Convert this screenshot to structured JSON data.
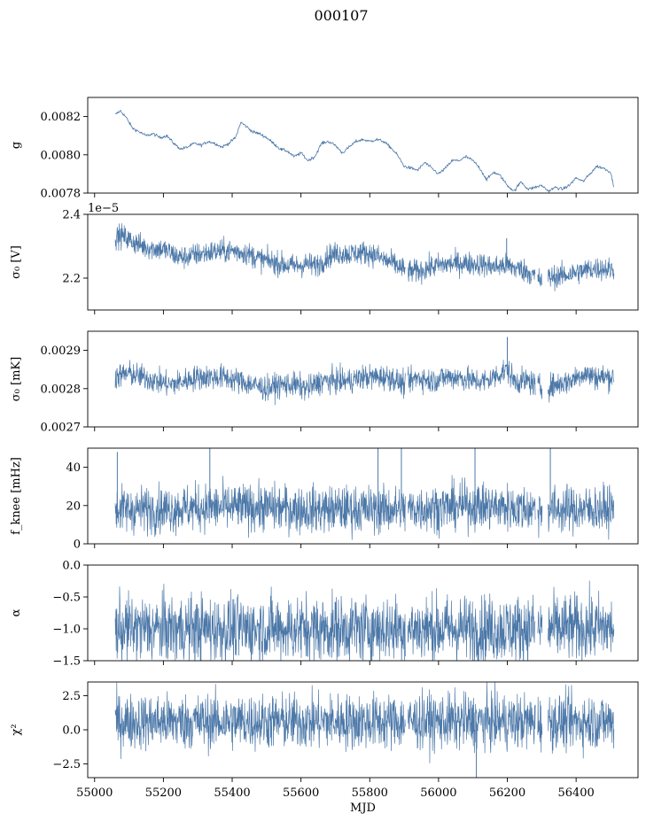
{
  "figure": {
    "suptitle": "000107",
    "line_color": "#4c78a8",
    "xlim": [
      54980,
      56580
    ]
  },
  "chart_data": [
    {
      "type": "line",
      "ylabel": "g",
      "ylim": [
        0.0078,
        0.0083
      ],
      "yticks": [
        0.0078,
        0.008,
        0.0082
      ],
      "yticklabels": [
        "0.0078",
        "0.0080",
        "0.0082"
      ],
      "xticks": [
        55000,
        55200,
        55400,
        55600,
        55800,
        56000,
        56200,
        56400
      ],
      "show_xticklabels": false,
      "style": "thin",
      "x": [
        55060,
        55075,
        55090,
        55110,
        55130,
        55150,
        55170,
        55190,
        55210,
        55230,
        55250,
        55270,
        55290,
        55310,
        55330,
        55350,
        55370,
        55390,
        55410,
        55425,
        55440,
        55460,
        55480,
        55500,
        55520,
        55540,
        55560,
        55580,
        55600,
        55620,
        55640,
        55660,
        55680,
        55700,
        55720,
        55740,
        55760,
        55780,
        55800,
        55820,
        55840,
        55860,
        55880,
        55900,
        55920,
        55940,
        55960,
        55980,
        56000,
        56020,
        56040,
        56060,
        56080,
        56100,
        56120,
        56140,
        56160,
        56180,
        56200,
        56220,
        56240,
        56260,
        56280,
        56300,
        56320,
        56340,
        56360,
        56380,
        56400,
        56420,
        56440,
        56460,
        56480,
        56500,
        56510
      ],
      "y": [
        0.00821,
        0.00823,
        0.0082,
        0.00814,
        0.00812,
        0.0081,
        0.00811,
        0.00809,
        0.0081,
        0.00806,
        0.00803,
        0.00804,
        0.00806,
        0.00805,
        0.00807,
        0.00806,
        0.00804,
        0.00806,
        0.00809,
        0.00817,
        0.00815,
        0.00812,
        0.00811,
        0.00809,
        0.00806,
        0.00803,
        0.00802,
        0.00799,
        0.00801,
        0.00797,
        0.00799,
        0.00806,
        0.00807,
        0.00805,
        0.00801,
        0.00804,
        0.00807,
        0.00808,
        0.00807,
        0.00808,
        0.00807,
        0.00804,
        0.008,
        0.00794,
        0.00793,
        0.00792,
        0.00796,
        0.00793,
        0.0079,
        0.00793,
        0.00797,
        0.00797,
        0.00799,
        0.00797,
        0.00793,
        0.00787,
        0.00791,
        0.00789,
        0.00784,
        0.00781,
        0.00786,
        0.00782,
        0.00783,
        0.00784,
        0.00781,
        0.00783,
        0.00782,
        0.00784,
        0.00788,
        0.00786,
        0.0079,
        0.00794,
        0.00793,
        0.00791,
        0.00783
      ]
    },
    {
      "type": "line",
      "ylabel": "σ₀ [V]",
      "ylim": [
        2.1e-05,
        2.4e-05
      ],
      "yticks": [
        2.2e-05,
        2.4e-05
      ],
      "yticklabels": [
        "2.2",
        "2.4"
      ],
      "offset_text": "1e−5",
      "xticks": [
        55000,
        55200,
        55400,
        55600,
        55800,
        56000,
        56200,
        56400
      ],
      "show_xticklabels": false,
      "style": "dense",
      "noise": 1.8e-07,
      "x": [
        55060,
        55080,
        55100,
        55120,
        55140,
        55160,
        55180,
        55200,
        55220,
        55240,
        55260,
        55280,
        55300,
        55320,
        55340,
        55360,
        55380,
        55400,
        55420,
        55440,
        55460,
        55480,
        55500,
        55520,
        55540,
        55560,
        55580,
        55600,
        55620,
        55640,
        55660,
        55680,
        55700,
        55720,
        55740,
        55760,
        55780,
        55800,
        55820,
        55840,
        55860,
        55880,
        55900,
        55920,
        55940,
        55960,
        55980,
        56000,
        56020,
        56040,
        56060,
        56080,
        56100,
        56120,
        56140,
        56160,
        56180,
        56200,
        56220,
        56240,
        56260,
        56280,
        56300,
        56320,
        56340,
        56360,
        56380,
        56400,
        56420,
        56440,
        56460,
        56480,
        56500,
        56510
      ],
      "y": [
        2.33e-05,
        2.333e-05,
        2.32e-05,
        2.31e-05,
        2.3e-05,
        2.295e-05,
        2.292e-05,
        2.29e-05,
        2.28e-05,
        2.268e-05,
        2.265e-05,
        2.27e-05,
        2.275e-05,
        2.278e-05,
        2.282e-05,
        2.284e-05,
        2.285e-05,
        2.286e-05,
        2.283e-05,
        2.278e-05,
        2.27e-05,
        2.26e-05,
        2.255e-05,
        2.25e-05,
        2.245e-05,
        2.24e-05,
        2.238e-05,
        2.24e-05,
        2.245e-05,
        2.238e-05,
        2.25e-05,
        2.27e-05,
        2.275e-05,
        2.278e-05,
        2.276e-05,
        2.278e-05,
        2.28e-05,
        2.278e-05,
        2.27e-05,
        2.258e-05,
        2.25e-05,
        2.24e-05,
        2.225e-05,
        2.22e-05,
        2.222e-05,
        2.228e-05,
        2.235e-05,
        2.24e-05,
        2.243e-05,
        2.245e-05,
        2.247e-05,
        2.246e-05,
        2.245e-05,
        2.244e-05,
        2.24e-05,
        2.235e-05,
        2.238e-05,
        2.24e-05,
        2.232e-05,
        2.228e-05,
        2.22e-05,
        2.205e-05,
        2.19e-05,
        2.202e-05,
        2.205e-05,
        2.208e-05,
        2.212e-05,
        2.218e-05,
        2.222e-05,
        2.228e-05,
        2.23e-05,
        2.23e-05,
        2.227e-05,
        2.225e-05
      ],
      "spikes": [
        [
          56198,
          2.325e-05
        ]
      ]
    },
    {
      "type": "line",
      "ylabel": "σ₀ [mK]",
      "ylim": [
        0.0027,
        0.00295
      ],
      "yticks": [
        0.0027,
        0.0028,
        0.0029
      ],
      "yticklabels": [
        "0.0027",
        "0.0028",
        "0.0029"
      ],
      "xticks": [
        55000,
        55200,
        55400,
        55600,
        55800,
        56000,
        56200,
        56400
      ],
      "show_xticklabels": false,
      "style": "dense",
      "noise": 1.6e-05,
      "x": [
        55060,
        55100,
        55140,
        55180,
        55220,
        55260,
        55300,
        55340,
        55380,
        55420,
        55460,
        55500,
        55540,
        55580,
        55620,
        55660,
        55700,
        55740,
        55780,
        55820,
        55860,
        55900,
        55940,
        55980,
        56020,
        56060,
        56100,
        56140,
        56180,
        56200,
        56220,
        56260,
        56280,
        56300,
        56340,
        56380,
        56420,
        56460,
        56500,
        56510
      ],
      "y": [
        0.00283,
        0.00284,
        0.00283,
        0.00282,
        0.00281,
        0.00282,
        0.00283,
        0.00283,
        0.00283,
        0.00282,
        0.00281,
        0.0028,
        0.00281,
        0.00281,
        0.0028,
        0.00282,
        0.00282,
        0.00282,
        0.00283,
        0.00283,
        0.00283,
        0.00281,
        0.00283,
        0.00282,
        0.00283,
        0.00283,
        0.00282,
        0.00282,
        0.00284,
        0.00285,
        0.00282,
        0.00282,
        0.00281,
        0.0028,
        0.00281,
        0.00282,
        0.00284,
        0.00283,
        0.00283,
        0.00283
      ],
      "spikes": [
        [
          56200,
          0.002935
        ]
      ]
    },
    {
      "type": "line",
      "ylabel": "f_knee [mHz]",
      "ylim": [
        0,
        50
      ],
      "yticks": [
        0,
        20,
        40
      ],
      "yticklabels": [
        "0",
        "20",
        "40"
      ],
      "xticks": [
        55000,
        55200,
        55400,
        55600,
        55800,
        56000,
        56200,
        56400
      ],
      "show_xticklabels": false,
      "style": "dense",
      "noise": 6,
      "x": [
        55060,
        55200,
        55300,
        55400,
        55500,
        55600,
        55700,
        55800,
        55900,
        56000,
        56100,
        56200,
        56300,
        56400,
        56510
      ],
      "y": [
        18,
        18,
        19,
        19,
        19,
        18,
        18,
        18,
        18,
        19,
        20,
        19,
        18,
        18,
        18
      ],
      "spikes": [
        [
          55066,
          48
        ],
        [
          55335,
          52
        ],
        [
          55824,
          50
        ],
        [
          55892,
          52
        ],
        [
          56106,
          52
        ],
        [
          56325,
          52
        ]
      ]
    },
    {
      "type": "line",
      "ylabel": "α",
      "ylim": [
        -1.5,
        0.0
      ],
      "yticks": [
        -1.5,
        -1.0,
        -0.5,
        0.0
      ],
      "yticklabels": [
        "−1.5",
        "−1.0",
        "−0.5",
        "0.0"
      ],
      "xticks": [
        55000,
        55200,
        55400,
        55600,
        55800,
        56000,
        56200,
        56400
      ],
      "show_xticklabels": false,
      "style": "dense",
      "noise": 0.26,
      "x": [
        55060,
        55300,
        55600,
        55900,
        56200,
        56510
      ],
      "y": [
        -1.0,
        -1.0,
        -1.0,
        -1.0,
        -1.0,
        -0.98
      ]
    },
    {
      "type": "line",
      "ylabel": "χ²",
      "ylim": [
        -3.5,
        3.5
      ],
      "yticks": [
        -2.5,
        0.0,
        2.5
      ],
      "yticklabels": [
        "−2.5",
        "0.0",
        "2.5"
      ],
      "xticks": [
        55000,
        55200,
        55400,
        55600,
        55800,
        56000,
        56200,
        56400
      ],
      "xticklabels": [
        "55000",
        "55200",
        "55400",
        "55600",
        "55800",
        "56000",
        "56200",
        "56400"
      ],
      "show_xticklabels": true,
      "xlabel": "MJD",
      "style": "dense",
      "noise": 1.0,
      "x": [
        55060,
        55300,
        55600,
        55900,
        56200,
        56510
      ],
      "y": [
        0.6,
        0.6,
        0.6,
        0.6,
        0.6,
        0.6
      ],
      "spikes": [
        [
          56110,
          -3.6
        ]
      ]
    }
  ]
}
